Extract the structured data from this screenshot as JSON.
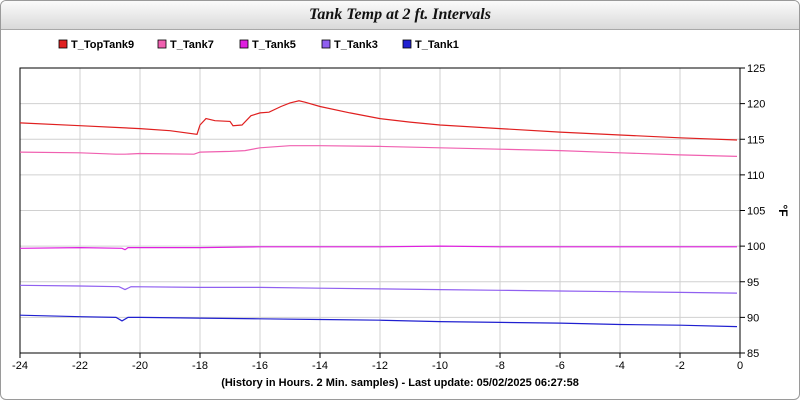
{
  "chart_data": {
    "type": "line",
    "title": "Tank Temp at 2 ft. Intervals",
    "xlabel": "(History in Hours. 2 Min. samples) - Last update: 05/02/2025 06:27:58",
    "ylabel": "°F",
    "xlim": [
      -24,
      0
    ],
    "ylim": [
      85,
      125
    ],
    "x_ticks": [
      -24,
      -22,
      -20,
      -18,
      -16,
      -14,
      -12,
      -10,
      -8,
      -6,
      -4,
      -2,
      0
    ],
    "y_ticks": [
      85,
      90,
      95,
      100,
      105,
      110,
      115,
      120,
      125
    ],
    "grid": true,
    "legend_position": "top-left",
    "y_axis_side": "right",
    "series": [
      {
        "name": "T_TopTank9",
        "color": "#e02020",
        "x": [
          -24,
          -22,
          -20,
          -19,
          -18.1,
          -18,
          -17.8,
          -17.5,
          -17.0,
          -16.9,
          -16.6,
          -16.3,
          -16.0,
          -15.7,
          -15.3,
          -15.0,
          -14.7,
          -14.5,
          -14,
          -13,
          -12,
          -11,
          -10,
          -8,
          -6,
          -4,
          -2,
          -0.1
        ],
        "y": [
          117.3,
          116.9,
          116.5,
          116.2,
          115.7,
          117.0,
          117.9,
          117.6,
          117.5,
          116.9,
          117.0,
          118.3,
          118.7,
          118.8,
          119.6,
          120.1,
          120.4,
          120.2,
          119.6,
          118.7,
          117.9,
          117.4,
          117.0,
          116.5,
          116.0,
          115.6,
          115.2,
          114.9
        ]
      },
      {
        "name": "T_Tank7",
        "color": "#f060b0",
        "x": [
          -24,
          -22,
          -20.8,
          -20.5,
          -20,
          -18.2,
          -18,
          -17,
          -16.5,
          -16,
          -15,
          -14,
          -12,
          -10,
          -8,
          -6,
          -4,
          -2,
          -0.1
        ],
        "y": [
          113.2,
          113.1,
          112.9,
          112.9,
          113.0,
          112.9,
          113.2,
          113.3,
          113.4,
          113.8,
          114.1,
          114.1,
          114.0,
          113.8,
          113.6,
          113.4,
          113.1,
          112.8,
          112.6
        ]
      },
      {
        "name": "T_Tank5",
        "color": "#e020e0",
        "x": [
          -24,
          -22,
          -20.6,
          -20.5,
          -20.4,
          -18,
          -16,
          -14,
          -12,
          -10,
          -8,
          -6,
          -4,
          -2,
          -0.1
        ],
        "y": [
          99.7,
          99.8,
          99.7,
          99.5,
          99.8,
          99.8,
          99.9,
          99.9,
          99.9,
          100.0,
          99.9,
          99.9,
          99.9,
          99.9,
          99.9
        ]
      },
      {
        "name": "T_Tank3",
        "color": "#9060f0",
        "x": [
          -24,
          -22,
          -20.7,
          -20.5,
          -20.3,
          -18,
          -16,
          -14,
          -12,
          -10,
          -8,
          -6,
          -4,
          -2,
          -0.1
        ],
        "y": [
          94.5,
          94.4,
          94.3,
          93.9,
          94.3,
          94.2,
          94.2,
          94.1,
          94.0,
          93.9,
          93.8,
          93.7,
          93.6,
          93.5,
          93.4
        ]
      },
      {
        "name": "T_Tank1",
        "color": "#2020d0",
        "x": [
          -24,
          -22,
          -20.8,
          -20.6,
          -20.4,
          -20,
          -18,
          -16,
          -14,
          -12,
          -10,
          -8,
          -6,
          -4,
          -2,
          -0.1
        ],
        "y": [
          90.3,
          90.1,
          90.0,
          89.5,
          90.0,
          90.0,
          89.9,
          89.8,
          89.7,
          89.6,
          89.4,
          89.3,
          89.2,
          89.0,
          88.9,
          88.7
        ]
      }
    ]
  }
}
